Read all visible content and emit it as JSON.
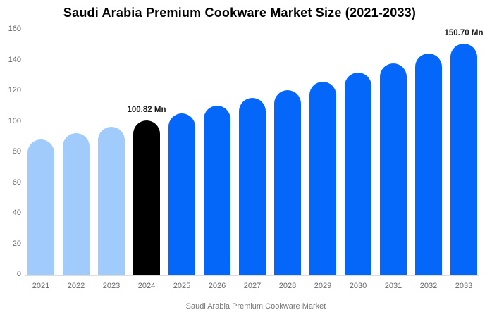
{
  "title": "Saudi Arabia Premium Cookware Market Size (2021-2033)",
  "legend": {
    "label": "Saudi Arabia Premium Cookware Market"
  },
  "colors": {
    "historical_bar": "#A0CBFB",
    "current_bar": "#000000",
    "forecast_bar": "#0566FA",
    "axis_line": "#CCCCCC",
    "baseline": "#DDDDDD",
    "tick_text": "#666666",
    "legend_text": "#757575",
    "annotation_text": "#1A1A1A",
    "title_text": "#000000"
  },
  "chart_data": {
    "type": "bar",
    "title": "Saudi Arabia Premium Cookware Market Size (2021-2033)",
    "xlabel": "",
    "ylabel": "",
    "unit": "Mn",
    "categories": [
      "2021",
      "2022",
      "2023",
      "2024",
      "2025",
      "2026",
      "2027",
      "2028",
      "2029",
      "2030",
      "2031",
      "2032",
      "2033"
    ],
    "values": [
      88.2,
      92.2,
      96.4,
      100.82,
      105.4,
      110.3,
      115.3,
      120.6,
      126.1,
      131.8,
      137.9,
      144.2,
      150.7
    ],
    "roles": [
      "historical",
      "historical",
      "historical",
      "current",
      "forecast",
      "forecast",
      "forecast",
      "forecast",
      "forecast",
      "forecast",
      "forecast",
      "forecast",
      "forecast"
    ],
    "ylim": [
      0,
      160
    ],
    "yticks": [
      0,
      20,
      40,
      60,
      80,
      100,
      120,
      140,
      160
    ],
    "grid": false,
    "legend_position": "bottom-center",
    "legend_entries": [
      "Saudi Arabia Premium Cookware Market"
    ],
    "annotations": [
      {
        "category": "2024",
        "text": "100.82 Mn"
      },
      {
        "category": "2033",
        "text": "150.70 Mn"
      }
    ]
  }
}
